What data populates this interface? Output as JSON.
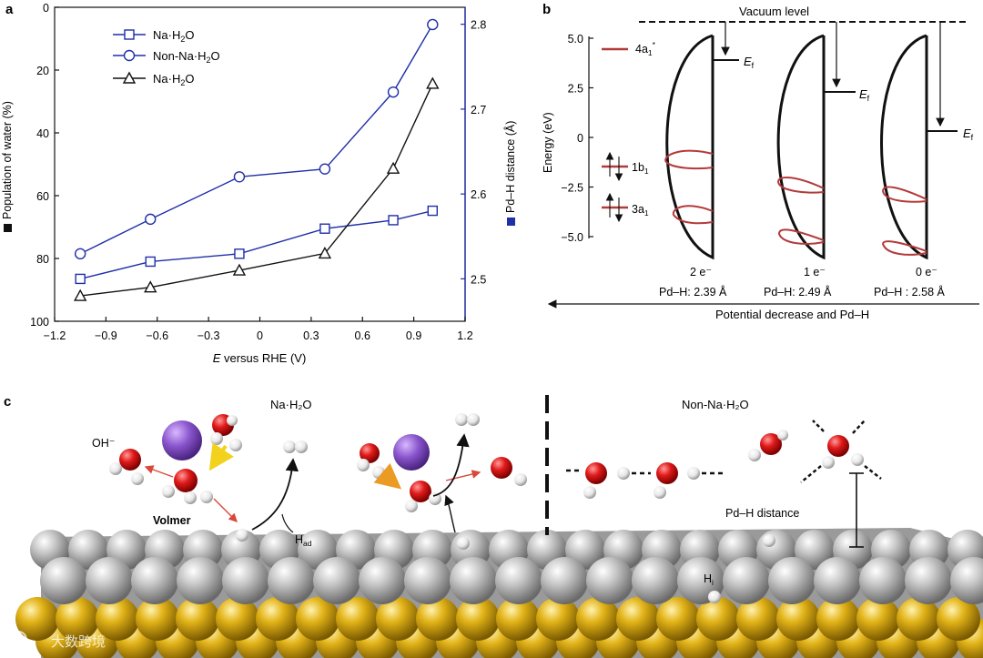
{
  "panels": {
    "a_label": "a",
    "b_label": "b",
    "c_label": "c"
  },
  "chart_data": {
    "type": "line",
    "xlabel_italic": "E",
    "xlabel_rest": " versus RHE (V)",
    "ylabel_left": "Population of water (%)",
    "ylabel_right": "Pd–H distance (Å)",
    "x_ticks": [
      "−1.2",
      "−0.9",
      "−0.6",
      "−0.3",
      "0",
      "0.3",
      "0.6",
      "0.9",
      "1.2"
    ],
    "x_tick_values": [
      -1.2,
      -0.9,
      -0.6,
      -0.3,
      0,
      0.3,
      0.6,
      0.9,
      1.2
    ],
    "y_left_ticks": [
      "0",
      "20",
      "40",
      "60",
      "80",
      "100"
    ],
    "y_left_tick_values": [
      0,
      20,
      40,
      60,
      80,
      100
    ],
    "y_right_ticks": [
      "2.5",
      "2.6",
      "2.7",
      "2.8"
    ],
    "y_right_tick_values": [
      2.5,
      2.6,
      2.7,
      2.8
    ],
    "xlim": [
      -1.2,
      1.2
    ],
    "ylim_left": [
      100,
      0
    ],
    "ylim_right": [
      2.45,
      2.82
    ],
    "x": [
      -1.05,
      -0.64,
      -0.12,
      0.38,
      0.78,
      1.01
    ],
    "series": [
      {
        "name": "Na·H2O",
        "legend_main": "Na·H",
        "legend_sub": "2",
        "legend_tail": "O",
        "axis": "left",
        "marker": "square",
        "color": "#1f2fa8",
        "values": [
          86.5,
          81.0,
          78.5,
          70.5,
          67.8,
          64.8
        ]
      },
      {
        "name": "Non-Na·H2O",
        "legend_main": "Non-Na·H",
        "legend_sub": "2",
        "legend_tail": "O",
        "axis": "left",
        "marker": "circle",
        "color": "#1f2fa8",
        "values": [
          78.5,
          67.5,
          54.0,
          51.5,
          27.0,
          5.5
        ]
      },
      {
        "name": "Na·H2O",
        "legend_main": "Na·H",
        "legend_sub": "2",
        "legend_tail": "O",
        "axis": "right",
        "marker": "triangle",
        "color": "#111111",
        "values": [
          2.48,
          2.49,
          2.51,
          2.53,
          2.63,
          2.73
        ]
      }
    ]
  },
  "panel_b": {
    "vacuum_label": "Vacuum level",
    "ylabel": "Energy (eV)",
    "y_ticks": [
      "5.0",
      "2.5",
      "0",
      "−2.5",
      "−5.0"
    ],
    "y_tick_values": [
      5.0,
      2.5,
      0,
      -2.5,
      -5.0
    ],
    "orbitals": [
      {
        "main": "4a",
        "sub": "1",
        "sup": "*"
      },
      {
        "main": "1b",
        "sub": "1",
        "sup": ""
      },
      {
        "main": "3a",
        "sub": "1",
        "sup": ""
      }
    ],
    "ef_main": "E",
    "ef_sub": "f",
    "columns": [
      {
        "electrons": "2 e⁻",
        "distance": "Pd–H: 2.39 Å"
      },
      {
        "electrons": "1 e⁻",
        "distance": "Pd–H: 2.49 Å"
      },
      {
        "electrons": "0 e⁻",
        "distance": "Pd–H : 2.58 Å"
      }
    ],
    "arrow_label": "Potential decrease and Pd–H"
  },
  "panel_c": {
    "na_title": "Na·H₂O",
    "non_na_title": "Non-Na·H₂O",
    "oh_label": "OH⁻",
    "volmer_label": "Volmer",
    "had_main": "H",
    "had_sub": "ad",
    "hi_main": "H",
    "hi_sub": "i",
    "pdh_label": "Pd–H distance"
  },
  "watermark": "大数跨境",
  "colors": {
    "blue": "#1f2fa8",
    "red_orbital": "#b33a3a",
    "oxygen": "#e01a1a",
    "sodium": "#8a55cc",
    "pd": "#b8b8b8",
    "gold": "#e2b318"
  }
}
